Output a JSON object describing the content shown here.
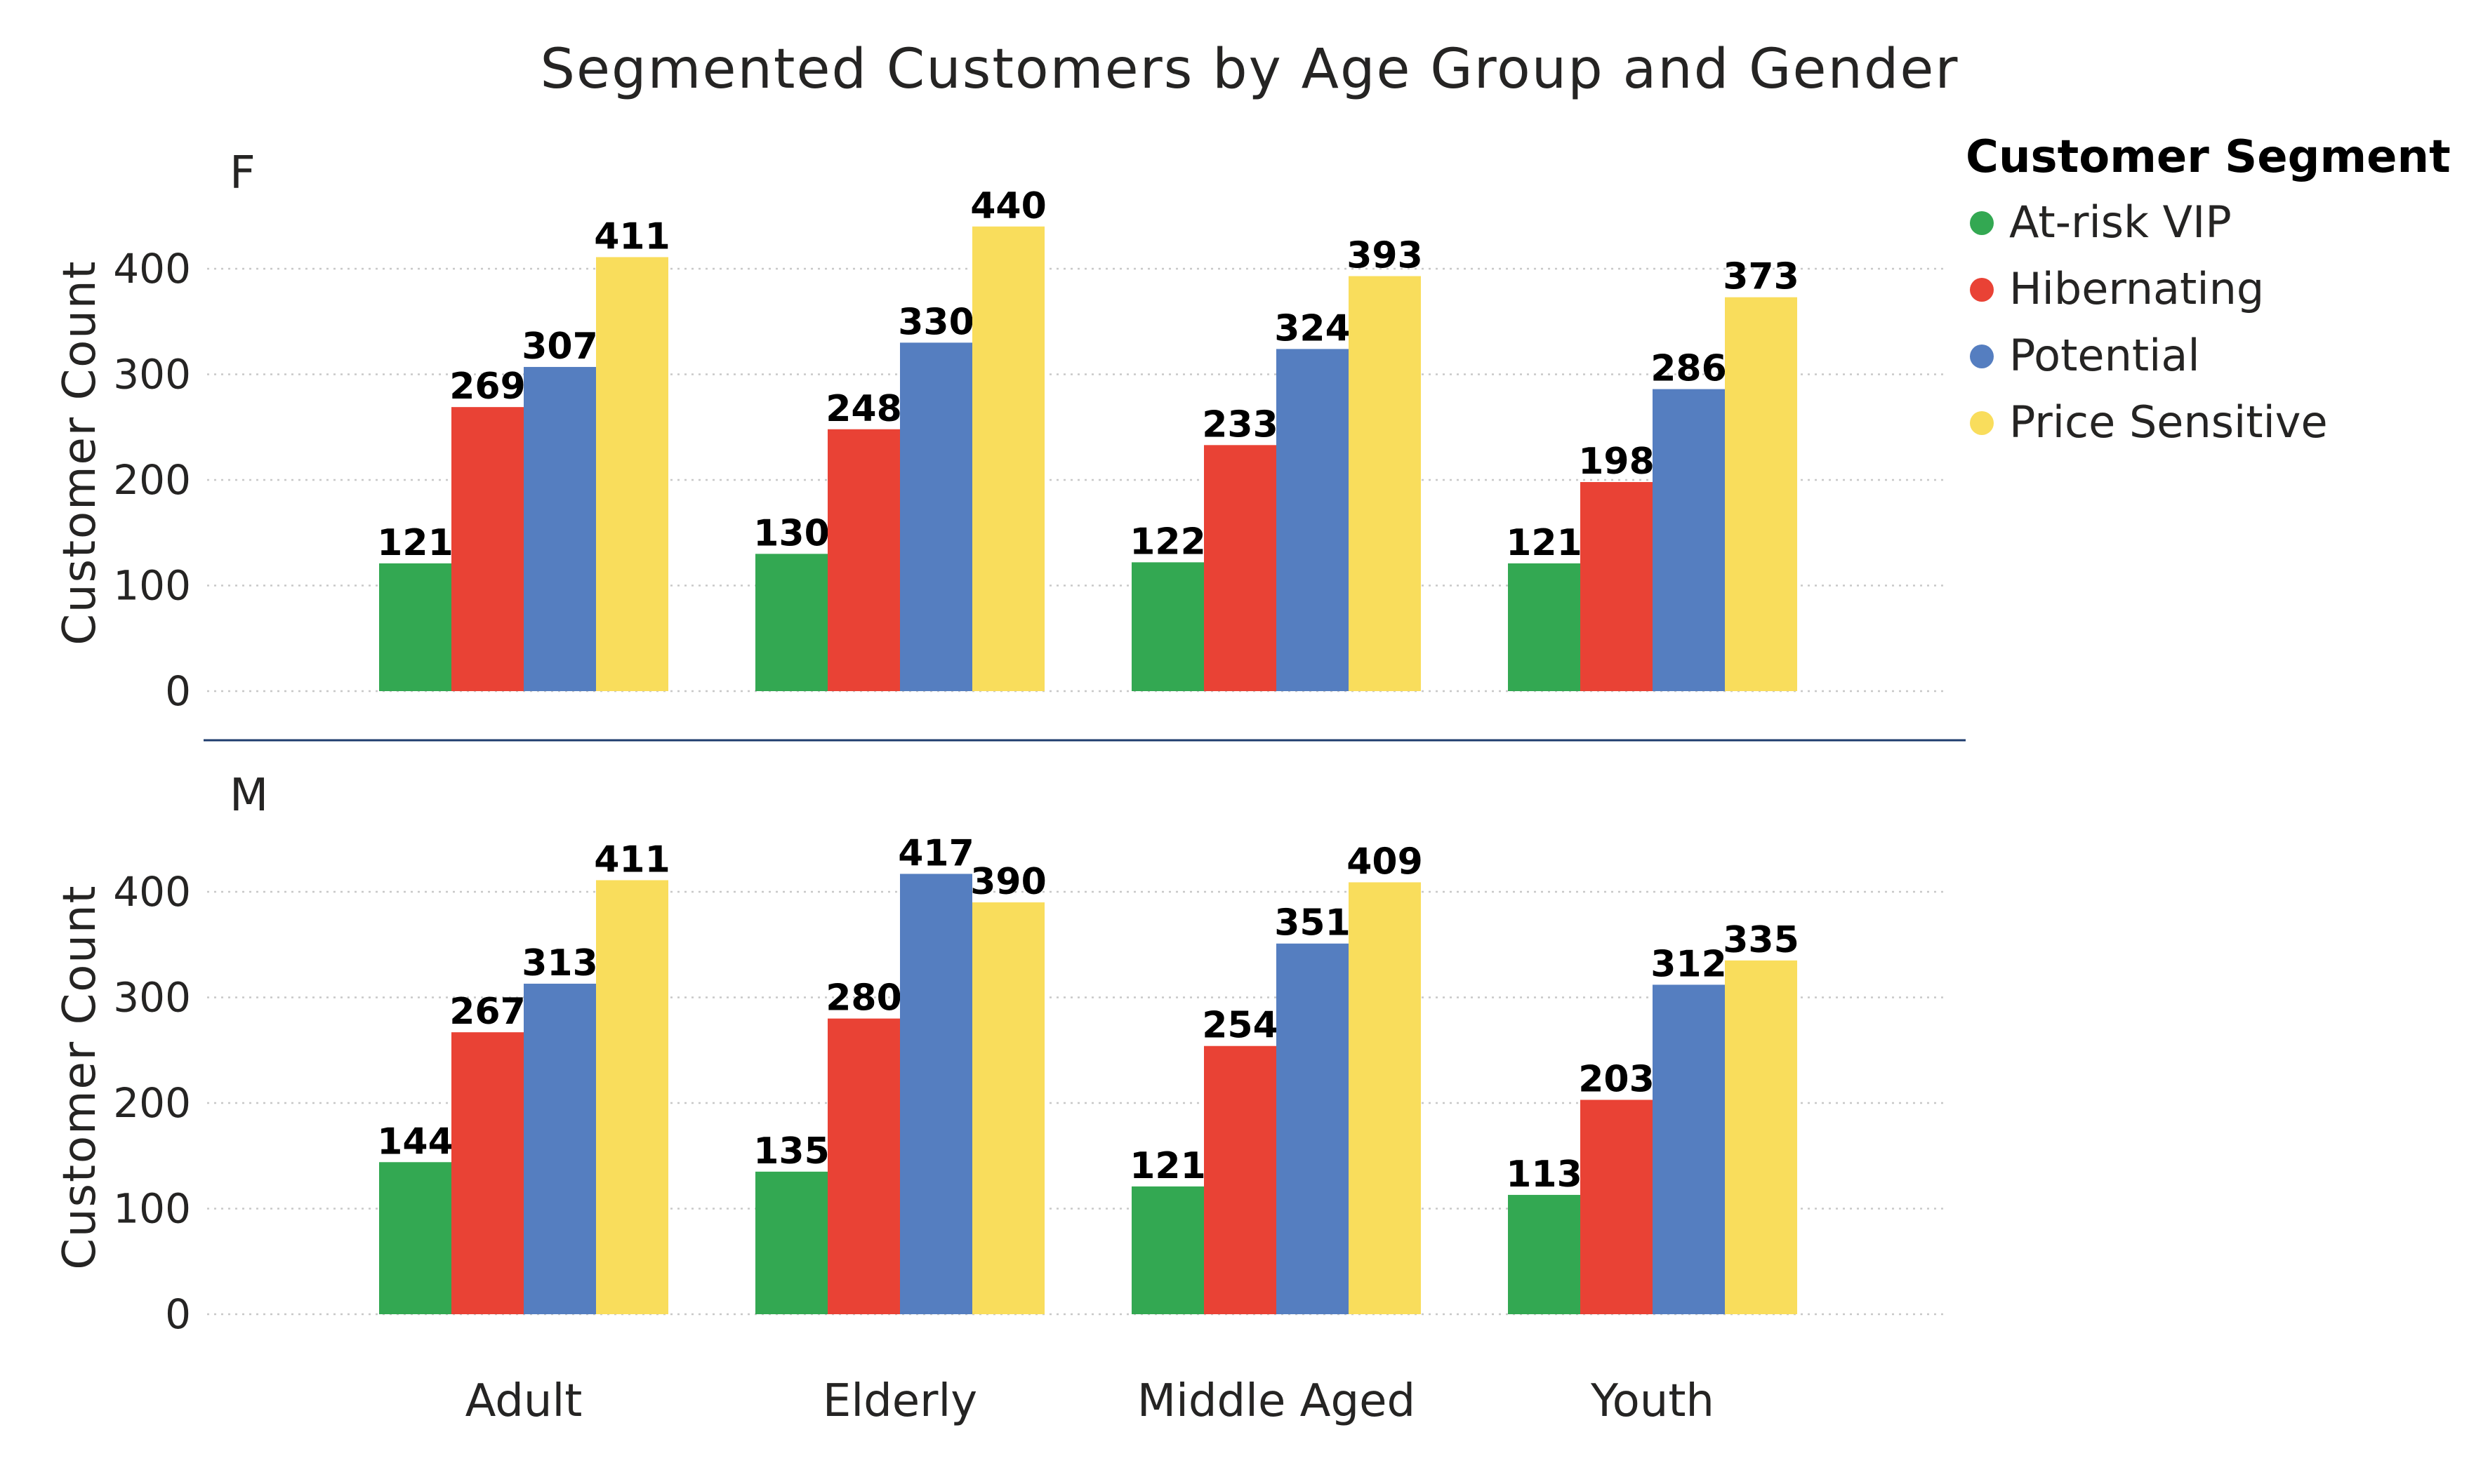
{
  "chart_data": {
    "type": "bar",
    "title": "Segmented Customers by Age Group and Gender",
    "ylabel": "Customer Count",
    "xlabel": "",
    "categories": [
      "Adult",
      "Elderly",
      "Middle Aged",
      "Youth"
    ],
    "ylim": [
      0,
      440
    ],
    "yticks": [
      0,
      100,
      200,
      300,
      400
    ],
    "grid": true,
    "legend": {
      "title": "Customer Segment",
      "placement": "top-right"
    },
    "series_colors": {
      "At-risk VIP": "#33a852",
      "Hibernating": "#e94235",
      "Potential": "#557ec0",
      "Price Sensitive": "#f9dd5c"
    },
    "facets": [
      {
        "label": "F",
        "series": [
          {
            "name": "At-risk VIP",
            "values": [
              121,
              130,
              122,
              121
            ]
          },
          {
            "name": "Hibernating",
            "values": [
              269,
              248,
              233,
              198
            ]
          },
          {
            "name": "Potential",
            "values": [
              307,
              330,
              324,
              286
            ]
          },
          {
            "name": "Price Sensitive",
            "values": [
              411,
              440,
              393,
              373
            ]
          }
        ]
      },
      {
        "label": "M",
        "series": [
          {
            "name": "At-risk VIP",
            "values": [
              144,
              135,
              121,
              113
            ]
          },
          {
            "name": "Hibernating",
            "values": [
              267,
              280,
              254,
              203
            ]
          },
          {
            "name": "Potential",
            "values": [
              313,
              417,
              351,
              312
            ]
          },
          {
            "name": "Price Sensitive",
            "values": [
              411,
              390,
              409,
              335
            ]
          }
        ]
      }
    ]
  }
}
